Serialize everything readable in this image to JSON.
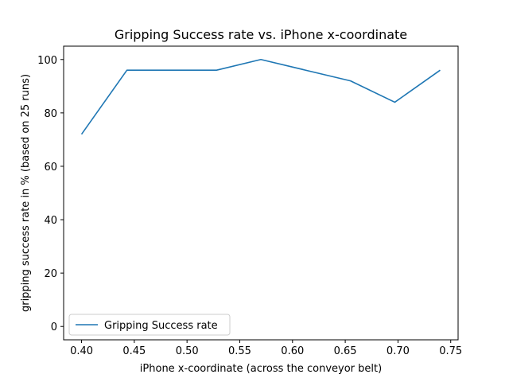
{
  "chart_data": {
    "type": "line",
    "title": "Gripping Success rate vs. iPhone x-coordinate",
    "xlabel": "iPhone x-coordinate (across the conveyor belt)",
    "ylabel": "gripping success rate in % (based on 25 runs)",
    "xlim": [
      0.383,
      0.757
    ],
    "ylim": [
      -5,
      105
    ],
    "xticks": [
      0.4,
      0.45,
      0.5,
      0.55,
      0.6,
      0.65,
      0.7,
      0.75
    ],
    "xtick_labels": [
      "0.40",
      "0.45",
      "0.50",
      "0.55",
      "0.60",
      "0.65",
      "0.70",
      "0.75"
    ],
    "yticks": [
      0,
      20,
      40,
      60,
      80,
      100
    ],
    "ytick_labels": [
      "0",
      "20",
      "40",
      "60",
      "80",
      "100"
    ],
    "grid": false,
    "legend_position": "lower-left",
    "series": [
      {
        "name": "Gripping Success rate",
        "color": "#1f77b4",
        "x": [
          0.4,
          0.443,
          0.528,
          0.57,
          0.655,
          0.697,
          0.74
        ],
        "y": [
          72,
          96,
          96,
          100,
          92,
          84,
          96
        ]
      }
    ]
  }
}
